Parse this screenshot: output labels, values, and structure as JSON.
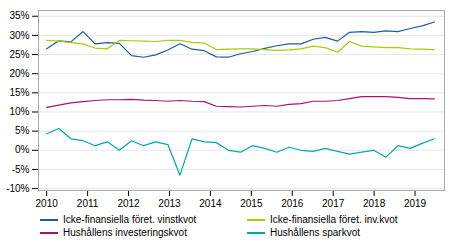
{
  "chart_data": {
    "type": "line",
    "x": [
      2010.0,
      2010.296,
      2010.592,
      2010.888,
      2011.184,
      2011.48,
      2011.776,
      2012.072,
      2012.368,
      2012.664,
      2012.96,
      2013.256,
      2013.552,
      2013.848,
      2014.144,
      2014.44,
      2014.736,
      2015.032,
      2015.328,
      2015.624,
      2015.92,
      2016.216,
      2016.512,
      2016.808,
      2017.104,
      2017.4,
      2017.696,
      2017.992,
      2018.288,
      2018.584,
      2018.88,
      2019.176,
      2019.472
    ],
    "series": [
      {
        "name": "Icke-finansiella föret. vinstkvot",
        "color": "#1a5ca8",
        "values": [
          0.265,
          0.286,
          0.283,
          0.31,
          0.278,
          0.281,
          0.279,
          0.247,
          0.243,
          0.249,
          0.262,
          0.278,
          0.264,
          0.26,
          0.244,
          0.243,
          0.252,
          0.258,
          0.266,
          0.273,
          0.278,
          0.278,
          0.29,
          0.295,
          0.285,
          0.308,
          0.31,
          0.308,
          0.312,
          0.31,
          0.318,
          0.325,
          0.335
        ]
      },
      {
        "name": "Icke-finansiella föret. inv.kvot",
        "color": "#aacc00",
        "values": [
          0.287,
          0.285,
          0.281,
          0.278,
          0.267,
          0.265,
          0.287,
          0.286,
          0.285,
          0.284,
          0.287,
          0.287,
          0.282,
          0.28,
          0.263,
          0.264,
          0.265,
          0.265,
          0.263,
          0.261,
          0.262,
          0.265,
          0.272,
          0.268,
          0.256,
          0.284,
          0.272,
          0.27,
          0.268,
          0.268,
          0.265,
          0.264,
          0.263
        ]
      },
      {
        "name": "Hushållens investeringskvot",
        "color": "#aa1177",
        "values": [
          0.112,
          0.118,
          0.124,
          0.127,
          0.13,
          0.132,
          0.132,
          0.133,
          0.131,
          0.13,
          0.128,
          0.13,
          0.128,
          0.127,
          0.115,
          0.114,
          0.113,
          0.115,
          0.117,
          0.115,
          0.12,
          0.122,
          0.128,
          0.128,
          0.13,
          0.135,
          0.14,
          0.14,
          0.14,
          0.138,
          0.135,
          0.135,
          0.134
        ]
      },
      {
        "name": "Hushållens sparkvot",
        "color": "#00aaaa",
        "values": [
          0.043,
          0.057,
          0.03,
          0.025,
          0.012,
          0.022,
          0.0,
          0.025,
          0.012,
          0.022,
          0.015,
          -0.065,
          0.03,
          0.022,
          0.02,
          0.0,
          -0.005,
          0.012,
          0.005,
          -0.005,
          0.008,
          0.0,
          -0.003,
          0.005,
          -0.003,
          -0.01,
          -0.005,
          0.0,
          -0.018,
          0.012,
          0.005,
          0.018,
          0.03
        ]
      }
    ],
    "xlim": [
      2009.8,
      2019.72
    ],
    "ylim": [
      -0.105,
      0.365
    ],
    "xticks": [
      2010,
      2011,
      2012,
      2013,
      2014,
      2015,
      2016,
      2017,
      2018,
      2019
    ],
    "yticks": [
      {
        "value": -0.1,
        "label": "-10%"
      },
      {
        "value": -0.05,
        "label": "-5%"
      },
      {
        "value": 0.0,
        "label": "0%"
      },
      {
        "value": 0.05,
        "label": "5%"
      },
      {
        "value": 0.1,
        "label": "10%"
      },
      {
        "value": 0.15,
        "label": "15%"
      },
      {
        "value": 0.2,
        "label": "20%"
      },
      {
        "value": 0.25,
        "label": "25%"
      },
      {
        "value": 0.3,
        "label": "30%"
      },
      {
        "value": 0.35,
        "label": "35%"
      }
    ],
    "grid": true
  }
}
